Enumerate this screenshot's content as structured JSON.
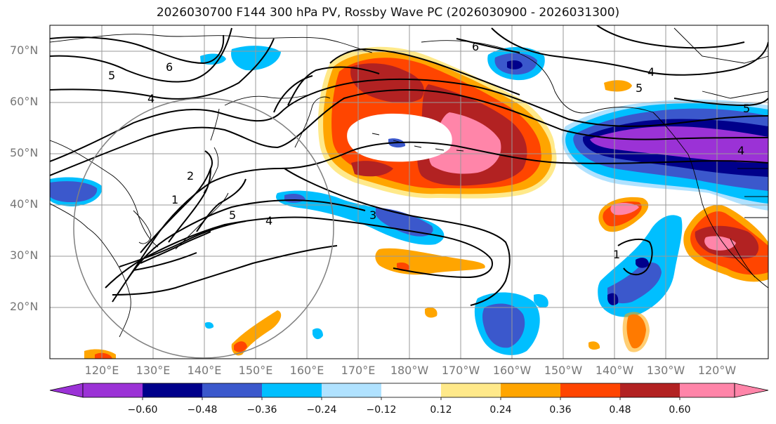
{
  "title": "2026030700 F144 300 hPa PV, Rossby Wave PC (2026030900 - 2026031300)",
  "lat_labels": [
    "70°N",
    "60°N",
    "50°N",
    "40°N",
    "30°N",
    "20°N"
  ],
  "lon_labels": [
    "120°E",
    "130°E",
    "140°E",
    "150°E",
    "160°E",
    "170°E",
    "180°W",
    "170°W",
    "160°W",
    "150°W",
    "140°W",
    "130°W",
    "120°W"
  ],
  "colorbar": {
    "ticks": [
      "−0.60",
      "−0.48",
      "−0.36",
      "−0.24",
      "−0.12",
      "0.12",
      "0.24",
      "0.36",
      "0.48",
      "0.60"
    ],
    "colors": [
      "#9b32d6",
      "#00008b",
      "#3b58cc",
      "#00bfff",
      "#b0e2ff",
      "#ffffff",
      "#ffe98a",
      "#ffa500",
      "#ff4500",
      "#b22222",
      "#ff85a9",
      "#ff85a9"
    ]
  },
  "contour_labels": [
    "5",
    "6",
    "4",
    "6",
    "5",
    "4",
    "5",
    "4",
    "5",
    "4",
    "3",
    "1",
    "2",
    "1"
  ],
  "colors": {
    "grid": "#999999",
    "coast": "#000000",
    "pink": "#ff85a9",
    "firebrick": "#b22222",
    "orangered": "#ff4500",
    "orange": "#ffa500",
    "yellow": "#ffe98a",
    "lightblue": "#b0e2ff",
    "deepsky": "#00bfff",
    "royal": "#3b58cc",
    "navy": "#00008b",
    "purple": "#9b32d6"
  }
}
